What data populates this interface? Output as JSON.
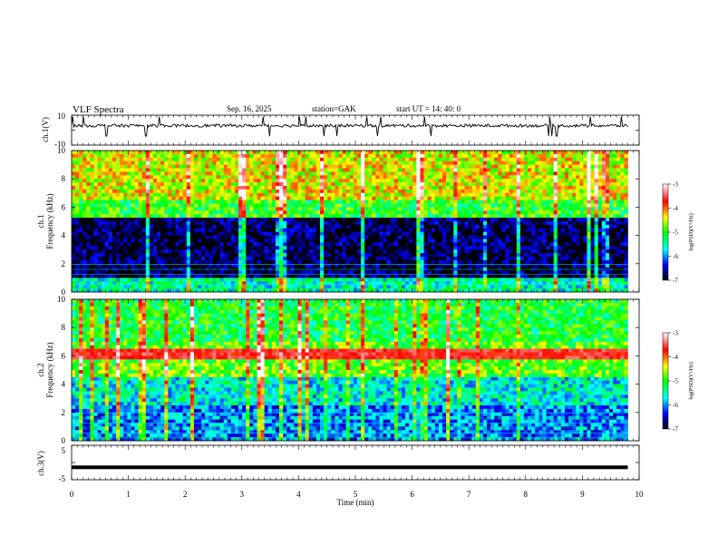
{
  "header": {
    "title": "VLF  Spectra",
    "date": "Sep. 16, 2025",
    "station": "station=GAK",
    "start": "start  UT =   14: 40: 0"
  },
  "colorbar": {
    "label": "log(PSD)(V²/Hz)",
    "ticks": [
      "-3",
      "-4",
      "-5",
      "-6",
      "-7"
    ],
    "colors": [
      "#ffffff",
      "#ff0000",
      "#ffff00",
      "#00ff00",
      "#00ffff",
      "#0000ff",
      "#000000"
    ]
  },
  "chart_data": [
    {
      "type": "line",
      "name": "ch.1 waveform",
      "ylabel": "ch.1(V)",
      "ylim": [
        -10,
        10
      ],
      "yticks": [
        "10",
        "-10"
      ],
      "baseline_value": 3,
      "noise_range": [
        2,
        4
      ],
      "x": [
        0,
        10
      ],
      "xlim": [
        0,
        10
      ]
    },
    {
      "type": "heatmap",
      "name": "ch.1 spectrogram",
      "ylabel": "ch.1",
      "ylabel2": "Frequency  (kHz)",
      "ylim": [
        0,
        10
      ],
      "yticks": [
        "0",
        "2",
        "4",
        "6",
        "8",
        "10"
      ],
      "xlim": [
        0,
        10
      ],
      "data_end_min": 9.8,
      "bands": [
        {
          "f_from": 0,
          "f_to": 1,
          "log_psd": -5.5
        },
        {
          "f_from": 1,
          "f_to": 5.2,
          "log_psd": -6.8
        },
        {
          "f_from": 5.2,
          "f_to": 6.5,
          "log_psd": -5.0
        },
        {
          "f_from": 6.5,
          "f_to": 10,
          "log_psd": -4.4
        }
      ]
    },
    {
      "type": "heatmap",
      "name": "ch.2 spectrogram",
      "ylabel": "ch.2",
      "ylabel2": "Frequency  (kHz)",
      "ylim": [
        0,
        10
      ],
      "yticks": [
        "0",
        "2",
        "4",
        "6",
        "8",
        "10"
      ],
      "xlim": [
        0,
        10
      ],
      "data_end_min": 9.8,
      "bands": [
        {
          "f_from": 0,
          "f_to": 2.5,
          "log_psd": -6.0
        },
        {
          "f_from": 2.5,
          "f_to": 4.5,
          "log_psd": -5.6
        },
        {
          "f_from": 4.5,
          "f_to": 7,
          "log_psd": -4.8
        },
        {
          "f_from": 7,
          "f_to": 10,
          "log_psd": -5.1
        }
      ],
      "line_kHz": 6.1
    },
    {
      "type": "line",
      "name": "ch.3 waveform",
      "ylabel": "ch.3(V)",
      "ylim": [
        -5,
        5
      ],
      "yticks": [
        "5",
        "-5"
      ],
      "baseline_value": -1.4,
      "x": [
        0,
        10
      ],
      "xlim": [
        0,
        10
      ]
    }
  ],
  "xaxis": {
    "label": "Time  (min)",
    "ticks": [
      "0",
      "1",
      "2",
      "3",
      "4",
      "5",
      "6",
      "7",
      "8",
      "9",
      "10"
    ]
  }
}
